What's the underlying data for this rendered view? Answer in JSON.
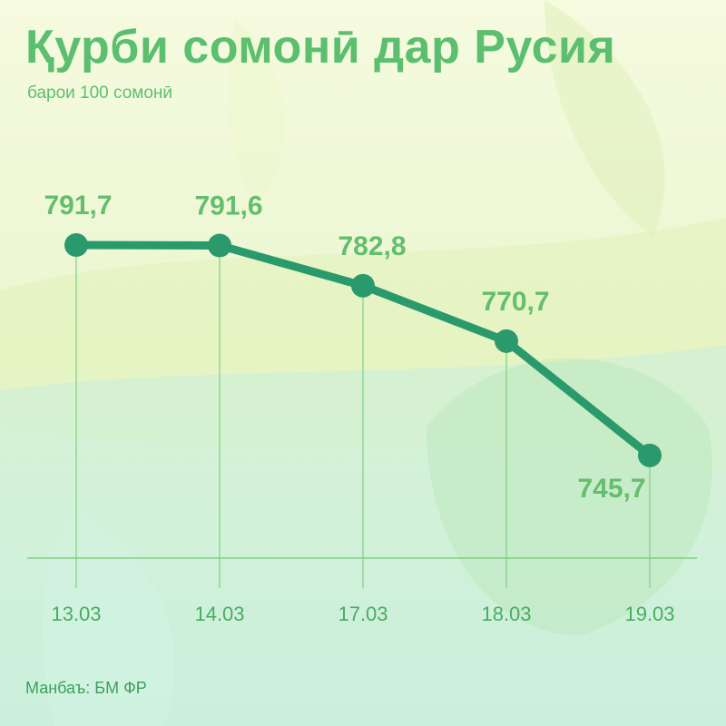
{
  "header": {
    "title": "Қурби сомонӣ дар Русия",
    "subtitle": "барои 100 сомонӣ"
  },
  "footer": {
    "source": "Манбаъ: БМ ФР"
  },
  "colors": {
    "line": "#2a9a6c",
    "labels": "#63bf6c",
    "grid": "#7fd07f",
    "title": "#5cbf70"
  },
  "chart_data": {
    "type": "line",
    "title": "Қурби сомонӣ дар Русия",
    "subtitle": "барои 100 сомонӣ",
    "xlabel": "",
    "ylabel": "",
    "categories": [
      "13.03",
      "14.03",
      "17.03",
      "18.03",
      "19.03"
    ],
    "series": [
      {
        "values": [
          791.7,
          791.6,
          782.8,
          770.7,
          745.7
        ],
        "labels": [
          "791,7",
          "791,6",
          "782,8",
          "770,7",
          "745,7"
        ]
      }
    ],
    "ylim": [
      700,
      800
    ],
    "grid": "vertical drop lines only",
    "legend": "none"
  }
}
